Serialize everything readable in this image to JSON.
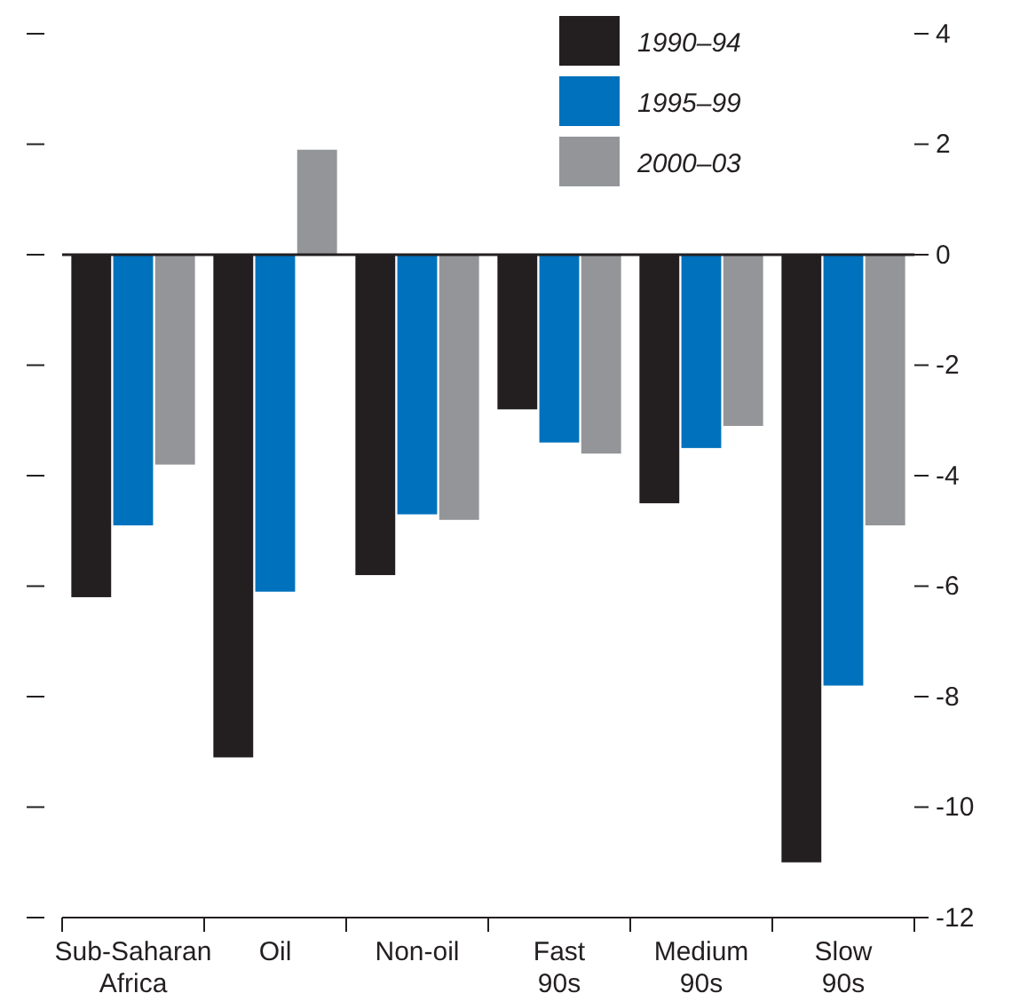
{
  "chart_data": {
    "type": "bar",
    "categories": [
      "Sub-Saharan\nAfrica",
      "Oil",
      "Non-oil",
      "Fast\n90s",
      "Medium\n90s",
      "Slow\n90s"
    ],
    "series": [
      {
        "name": "1990–94",
        "color": "#231f20",
        "values": [
          -6.2,
          -9.1,
          -5.8,
          -2.8,
          -4.5,
          -11.0
        ]
      },
      {
        "name": "1995–99",
        "color": "#0071bc",
        "values": [
          -4.9,
          -6.1,
          -4.7,
          -3.4,
          -3.5,
          -7.8
        ]
      },
      {
        "name": "2000–03",
        "color": "#939598",
        "values": [
          -3.8,
          1.9,
          -4.8,
          -3.6,
          -3.1,
          -4.9
        ]
      }
    ],
    "ylim": [
      -12,
      4
    ],
    "yticks": [
      -12,
      -10,
      -8,
      -6,
      -4,
      -2,
      0,
      2,
      4
    ],
    "legend": "top right"
  }
}
